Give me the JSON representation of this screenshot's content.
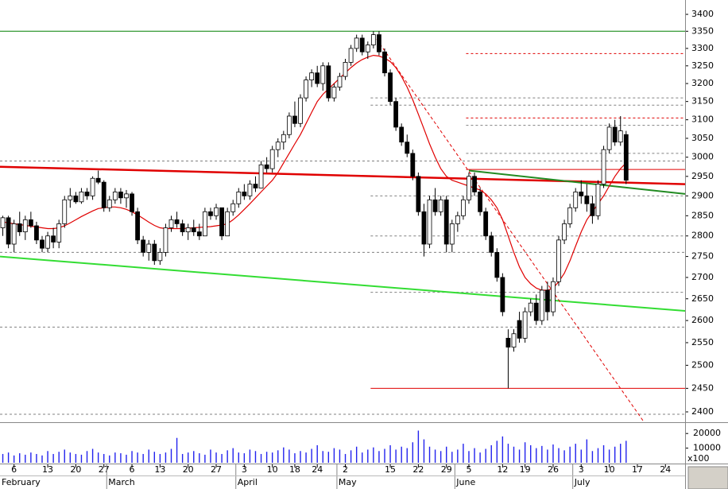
{
  "chart_data": {
    "type": "candlestick",
    "log": true,
    "ylim": [
      2380,
      3443
    ],
    "yticks": [
      3400,
      3350,
      3300,
      3250,
      3200,
      3150,
      3100,
      3050,
      3000,
      2950,
      2900,
      2850,
      2800,
      2750,
      2700,
      2650,
      2600,
      2550,
      2500,
      2450,
      2400
    ],
    "grid": false,
    "categories": [
      null,
      null,
      "6",
      null,
      null,
      null,
      null,
      null,
      "13",
      null,
      null,
      null,
      null,
      "20",
      null,
      null,
      null,
      null,
      "27",
      null,
      null,
      null,
      null,
      "6",
      null,
      null,
      null,
      null,
      "13",
      null,
      null,
      null,
      null,
      "20",
      null,
      null,
      null,
      null,
      "27",
      null,
      null,
      null,
      null,
      "3",
      null,
      null,
      null,
      null,
      "10",
      null,
      null,
      null,
      "18",
      null,
      null,
      null,
      "24",
      null,
      null,
      null,
      null,
      "2",
      null,
      null,
      null,
      null,
      null,
      null,
      null,
      "15",
      null,
      null,
      null,
      null,
      "22",
      null,
      null,
      null,
      null,
      "29",
      null,
      null,
      null,
      "5",
      null,
      null,
      null,
      null,
      null,
      "12",
      null,
      null,
      null,
      "19",
      null,
      null,
      null,
      null,
      "26",
      null,
      null,
      null,
      null,
      "3",
      null,
      null,
      null,
      null,
      "10",
      null,
      null,
      null,
      null,
      "17",
      null,
      null,
      null,
      null,
      "24",
      null,
      null,
      null
    ],
    "months": [
      {
        "label": "February",
        "index": 0
      },
      {
        "label": "March",
        "index": 19
      },
      {
        "label": "April",
        "index": 42
      },
      {
        "label": "May",
        "index": 60
      },
      {
        "label": "June",
        "index": 81
      },
      {
        "label": "July",
        "index": 102
      }
    ],
    "up_color": "#ffffff",
    "down_color": "#000000",
    "ohlc": [
      [
        2820,
        2850,
        2800,
        2845
      ],
      [
        2845,
        2850,
        2770,
        2780
      ],
      [
        2780,
        2840,
        2760,
        2830
      ],
      [
        2830,
        2860,
        2800,
        2810
      ],
      [
        2810,
        2850,
        2790,
        2840
      ],
      [
        2840,
        2860,
        2820,
        2825
      ],
      [
        2825,
        2835,
        2780,
        2790
      ],
      [
        2790,
        2800,
        2760,
        2770
      ],
      [
        2770,
        2810,
        2760,
        2800
      ],
      [
        2800,
        2820,
        2770,
        2785
      ],
      [
        2785,
        2840,
        2770,
        2830
      ],
      [
        2830,
        2900,
        2820,
        2890
      ],
      [
        2890,
        2920,
        2870,
        2900
      ],
      [
        2900,
        2910,
        2880,
        2885
      ],
      [
        2885,
        2920,
        2880,
        2910
      ],
      [
        2910,
        2920,
        2890,
        2900
      ],
      [
        2900,
        2950,
        2890,
        2945
      ],
      [
        2945,
        2965,
        2930,
        2935
      ],
      [
        2935,
        2940,
        2860,
        2870
      ],
      [
        2870,
        2900,
        2860,
        2890
      ],
      [
        2890,
        2920,
        2880,
        2910
      ],
      [
        2910,
        2920,
        2880,
        2895
      ],
      [
        2895,
        2915,
        2870,
        2905
      ],
      [
        2905,
        2910,
        2850,
        2860
      ],
      [
        2860,
        2870,
        2780,
        2790
      ],
      [
        2790,
        2800,
        2750,
        2760
      ],
      [
        2760,
        2790,
        2740,
        2780
      ],
      [
        2780,
        2790,
        2730,
        2740
      ],
      [
        2740,
        2770,
        2730,
        2760
      ],
      [
        2760,
        2830,
        2750,
        2820
      ],
      [
        2820,
        2850,
        2810,
        2840
      ],
      [
        2840,
        2860,
        2820,
        2830
      ],
      [
        2830,
        2840,
        2800,
        2810
      ],
      [
        2810,
        2830,
        2790,
        2820
      ],
      [
        2820,
        2840,
        2800,
        2810
      ],
      [
        2810,
        2830,
        2790,
        2800
      ],
      [
        2800,
        2870,
        2800,
        2860
      ],
      [
        2860,
        2870,
        2840,
        2850
      ],
      [
        2850,
        2880,
        2840,
        2870
      ],
      [
        2870,
        2870,
        2790,
        2800
      ],
      [
        2800,
        2870,
        2800,
        2860
      ],
      [
        2860,
        2890,
        2850,
        2880
      ],
      [
        2880,
        2920,
        2870,
        2910
      ],
      [
        2910,
        2930,
        2890,
        2900
      ],
      [
        2900,
        2940,
        2890,
        2930
      ],
      [
        2930,
        2950,
        2910,
        2920
      ],
      [
        2920,
        2990,
        2920,
        2980
      ],
      [
        2980,
        3000,
        2960,
        2970
      ],
      [
        2970,
        3030,
        2960,
        3020
      ],
      [
        3020,
        3050,
        3000,
        3040
      ],
      [
        3040,
        3070,
        3020,
        3060
      ],
      [
        3060,
        3120,
        3050,
        3110
      ],
      [
        3110,
        3150,
        3080,
        3090
      ],
      [
        3090,
        3170,
        3080,
        3160
      ],
      [
        3160,
        3220,
        3150,
        3210
      ],
      [
        3210,
        3240,
        3190,
        3230
      ],
      [
        3230,
        3250,
        3190,
        3200
      ],
      [
        3200,
        3260,
        3180,
        3250
      ],
      [
        3250,
        3260,
        3150,
        3160
      ],
      [
        3160,
        3200,
        3150,
        3190
      ],
      [
        3190,
        3230,
        3180,
        3220
      ],
      [
        3220,
        3270,
        3210,
        3260
      ],
      [
        3260,
        3310,
        3250,
        3300
      ],
      [
        3300,
        3340,
        3290,
        3330
      ],
      [
        3330,
        3340,
        3280,
        3290
      ],
      [
        3290,
        3320,
        3270,
        3310
      ],
      [
        3310,
        3350,
        3300,
        3340
      ],
      [
        3340,
        3350,
        3280,
        3290
      ],
      [
        3290,
        3300,
        3220,
        3230
      ],
      [
        3230,
        3240,
        3140,
        3150
      ],
      [
        3150,
        3160,
        3070,
        3080
      ],
      [
        3080,
        3090,
        3030,
        3040
      ],
      [
        3040,
        3060,
        3000,
        3010
      ],
      [
        3010,
        3020,
        2940,
        2950
      ],
      [
        2950,
        2960,
        2850,
        2860
      ],
      [
        2860,
        2880,
        2750,
        2780
      ],
      [
        2780,
        2900,
        2770,
        2890
      ],
      [
        2890,
        2920,
        2850,
        2860
      ],
      [
        2860,
        2900,
        2850,
        2890
      ],
      [
        2890,
        2900,
        2760,
        2780
      ],
      [
        2780,
        2840,
        2760,
        2830
      ],
      [
        2830,
        2860,
        2810,
        2850
      ],
      [
        2850,
        2900,
        2840,
        2890
      ],
      [
        2890,
        2960,
        2880,
        2950
      ],
      [
        2950,
        2960,
        2900,
        2910
      ],
      [
        2910,
        2920,
        2850,
        2860
      ],
      [
        2860,
        2870,
        2790,
        2800
      ],
      [
        2800,
        2810,
        2750,
        2760
      ],
      [
        2760,
        2770,
        2690,
        2700
      ],
      [
        2700,
        2710,
        2610,
        2620
      ],
      [
        2560,
        2580,
        2450,
        2540
      ],
      [
        2540,
        2580,
        2530,
        2570
      ],
      [
        2600,
        2620,
        2550,
        2560
      ],
      [
        2560,
        2630,
        2550,
        2620
      ],
      [
        2620,
        2650,
        2610,
        2640
      ],
      [
        2640,
        2660,
        2590,
        2600
      ],
      [
        2600,
        2680,
        2590,
        2670
      ],
      [
        2670,
        2690,
        2600,
        2620
      ],
      [
        2620,
        2700,
        2610,
        2690
      ],
      [
        2690,
        2800,
        2680,
        2790
      ],
      [
        2790,
        2840,
        2780,
        2830
      ],
      [
        2830,
        2880,
        2820,
        2870
      ],
      [
        2870,
        2920,
        2860,
        2910
      ],
      [
        2910,
        2940,
        2880,
        2900
      ],
      [
        2900,
        2930,
        2860,
        2880
      ],
      [
        2880,
        2900,
        2830,
        2850
      ],
      [
        2850,
        2940,
        2840,
        2930
      ],
      [
        2930,
        3030,
        2920,
        3020
      ],
      [
        3020,
        3090,
        3010,
        3080
      ],
      [
        3080,
        3100,
        3030,
        3040
      ],
      [
        3040,
        3110,
        3030,
        3070
      ],
      [
        3060,
        3070,
        2930,
        2940
      ],
      null,
      null,
      null,
      null,
      null,
      null,
      null,
      null,
      null,
      null
    ],
    "ma": {
      "color": "#e00000",
      "values": [
        2835,
        2832,
        2830,
        2828,
        2826,
        2824,
        2822,
        2820,
        2818,
        2818,
        2820,
        2825,
        2832,
        2840,
        2848,
        2855,
        2862,
        2868,
        2870,
        2872,
        2872,
        2870,
        2866,
        2860,
        2852,
        2843,
        2834,
        2826,
        2820,
        2818,
        2818,
        2818,
        2818,
        2819,
        2820,
        2821,
        2822,
        2823,
        2825,
        2827,
        2830,
        2840,
        2852,
        2866,
        2880,
        2895,
        2910,
        2925,
        2940,
        2960,
        2985,
        3010,
        3035,
        3060,
        3090,
        3120,
        3150,
        3170,
        3185,
        3200,
        3215,
        3230,
        3245,
        3258,
        3268,
        3275,
        3280,
        3278,
        3272,
        3262,
        3245,
        3220,
        3190,
        3155,
        3115,
        3075,
        3035,
        3000,
        2970,
        2950,
        2940,
        2935,
        2930,
        2925,
        2920,
        2915,
        2905,
        2890,
        2870,
        2840,
        2800,
        2760,
        2725,
        2700,
        2685,
        2675,
        2670,
        2670,
        2675,
        2690,
        2710,
        2740,
        2775,
        2810,
        2840,
        2860,
        2880,
        2900,
        2925,
        2950,
        2970,
        2985,
        null,
        null,
        null,
        null,
        null,
        null,
        null,
        null,
        null,
        null
      ]
    },
    "volume": {
      "color": "#2222ee",
      "ylim": [
        0,
        25000
      ],
      "yticks": [
        20000,
        10000
      ],
      "unit": "x100",
      "values": [
        6000,
        7000,
        5000,
        6500,
        5500,
        7000,
        6000,
        5000,
        8000,
        6000,
        7500,
        9000,
        7000,
        6000,
        5500,
        8000,
        9500,
        7000,
        6000,
        5000,
        7000,
        6500,
        5500,
        8000,
        7000,
        6000,
        9000,
        7500,
        6000,
        7000,
        9500,
        17000,
        6000,
        7000,
        8000,
        6500,
        5500,
        9000,
        7000,
        6000,
        8500,
        10000,
        7000,
        6500,
        9000,
        8000,
        6000,
        7500,
        7000,
        8500,
        10500,
        9000,
        6500,
        8000,
        7000,
        9500,
        12000,
        8000,
        7500,
        10000,
        9000,
        6000,
        8500,
        11000,
        7000,
        9000,
        10500,
        8000,
        9500,
        12000,
        9000,
        11000,
        10000,
        14000,
        22000,
        16000,
        11000,
        9000,
        8000,
        11000,
        7500,
        9000,
        13000,
        8000,
        10000,
        7000,
        9500,
        12000,
        15000,
        18000,
        13000,
        11000,
        9000,
        14000,
        12000,
        10000,
        11500,
        9000,
        12500,
        10000,
        8500,
        11000,
        13000,
        9000,
        16000,
        8000,
        10000,
        12000,
        9000,
        11000,
        13000,
        15000,
        null,
        null,
        null,
        null,
        null,
        null,
        null,
        null,
        null,
        null
      ]
    },
    "levels": [
      {
        "value": 3350,
        "from": 0,
        "to": 122,
        "color": "#008000",
        "dash": false
      },
      {
        "value": 3285,
        "from": 83,
        "to": 122,
        "color": "#e00000",
        "dash": true
      },
      {
        "value": 3160,
        "from": 66,
        "to": 122,
        "color": "#808080",
        "dash": true
      },
      {
        "value": 3140,
        "from": 66,
        "to": 122,
        "color": "#808080",
        "dash": true
      },
      {
        "value": 3105,
        "from": 83,
        "to": 122,
        "color": "#e00000",
        "dash": true
      },
      {
        "value": 3085,
        "from": 83,
        "to": 122,
        "color": "#808080",
        "dash": true
      },
      {
        "value": 3010,
        "from": 83,
        "to": 122,
        "color": "#808080",
        "dash": true
      },
      {
        "value": 2990,
        "from": 0,
        "to": 122,
        "color": "#808080",
        "dash": true
      },
      {
        "value": 2968,
        "from": 83,
        "to": 122,
        "color": "#e00000",
        "dash": false
      },
      {
        "value": 2900,
        "from": 66,
        "to": 122,
        "color": "#808080",
        "dash": true
      },
      {
        "value": 2800,
        "from": 66,
        "to": 122,
        "color": "#808080",
        "dash": true
      },
      {
        "value": 2760,
        "from": 0,
        "to": 122,
        "color": "#808080",
        "dash": true
      },
      {
        "value": 2665,
        "from": 66,
        "to": 122,
        "color": "#808080",
        "dash": true
      },
      {
        "value": 2585,
        "from": 0,
        "to": 122,
        "color": "#808080",
        "dash": true
      },
      {
        "value": 2450,
        "from": 66,
        "to": 122,
        "color": "#e00000",
        "dash": false
      },
      {
        "value": 2395,
        "from": 0,
        "to": 122,
        "color": "#808080",
        "dash": true
      }
    ],
    "trendlines": [
      {
        "x": [
          0,
          122
        ],
        "y": [
          2975,
          2930
        ],
        "color": "#e00000",
        "width": 2.5,
        "dash": false
      },
      {
        "x": [
          0,
          122
        ],
        "y": [
          2750,
          2622
        ],
        "color": "#33dd33",
        "width": 2,
        "dash": false
      },
      {
        "x": [
          83.5,
          122
        ],
        "y": [
          2965,
          2905
        ],
        "color": "#228b22",
        "width": 2,
        "dash": false
      },
      {
        "x": [
          66.5,
          114.6
        ],
        "y": [
          3340,
          2380
        ],
        "color": "#e00000",
        "width": 1,
        "dash": true
      }
    ]
  }
}
